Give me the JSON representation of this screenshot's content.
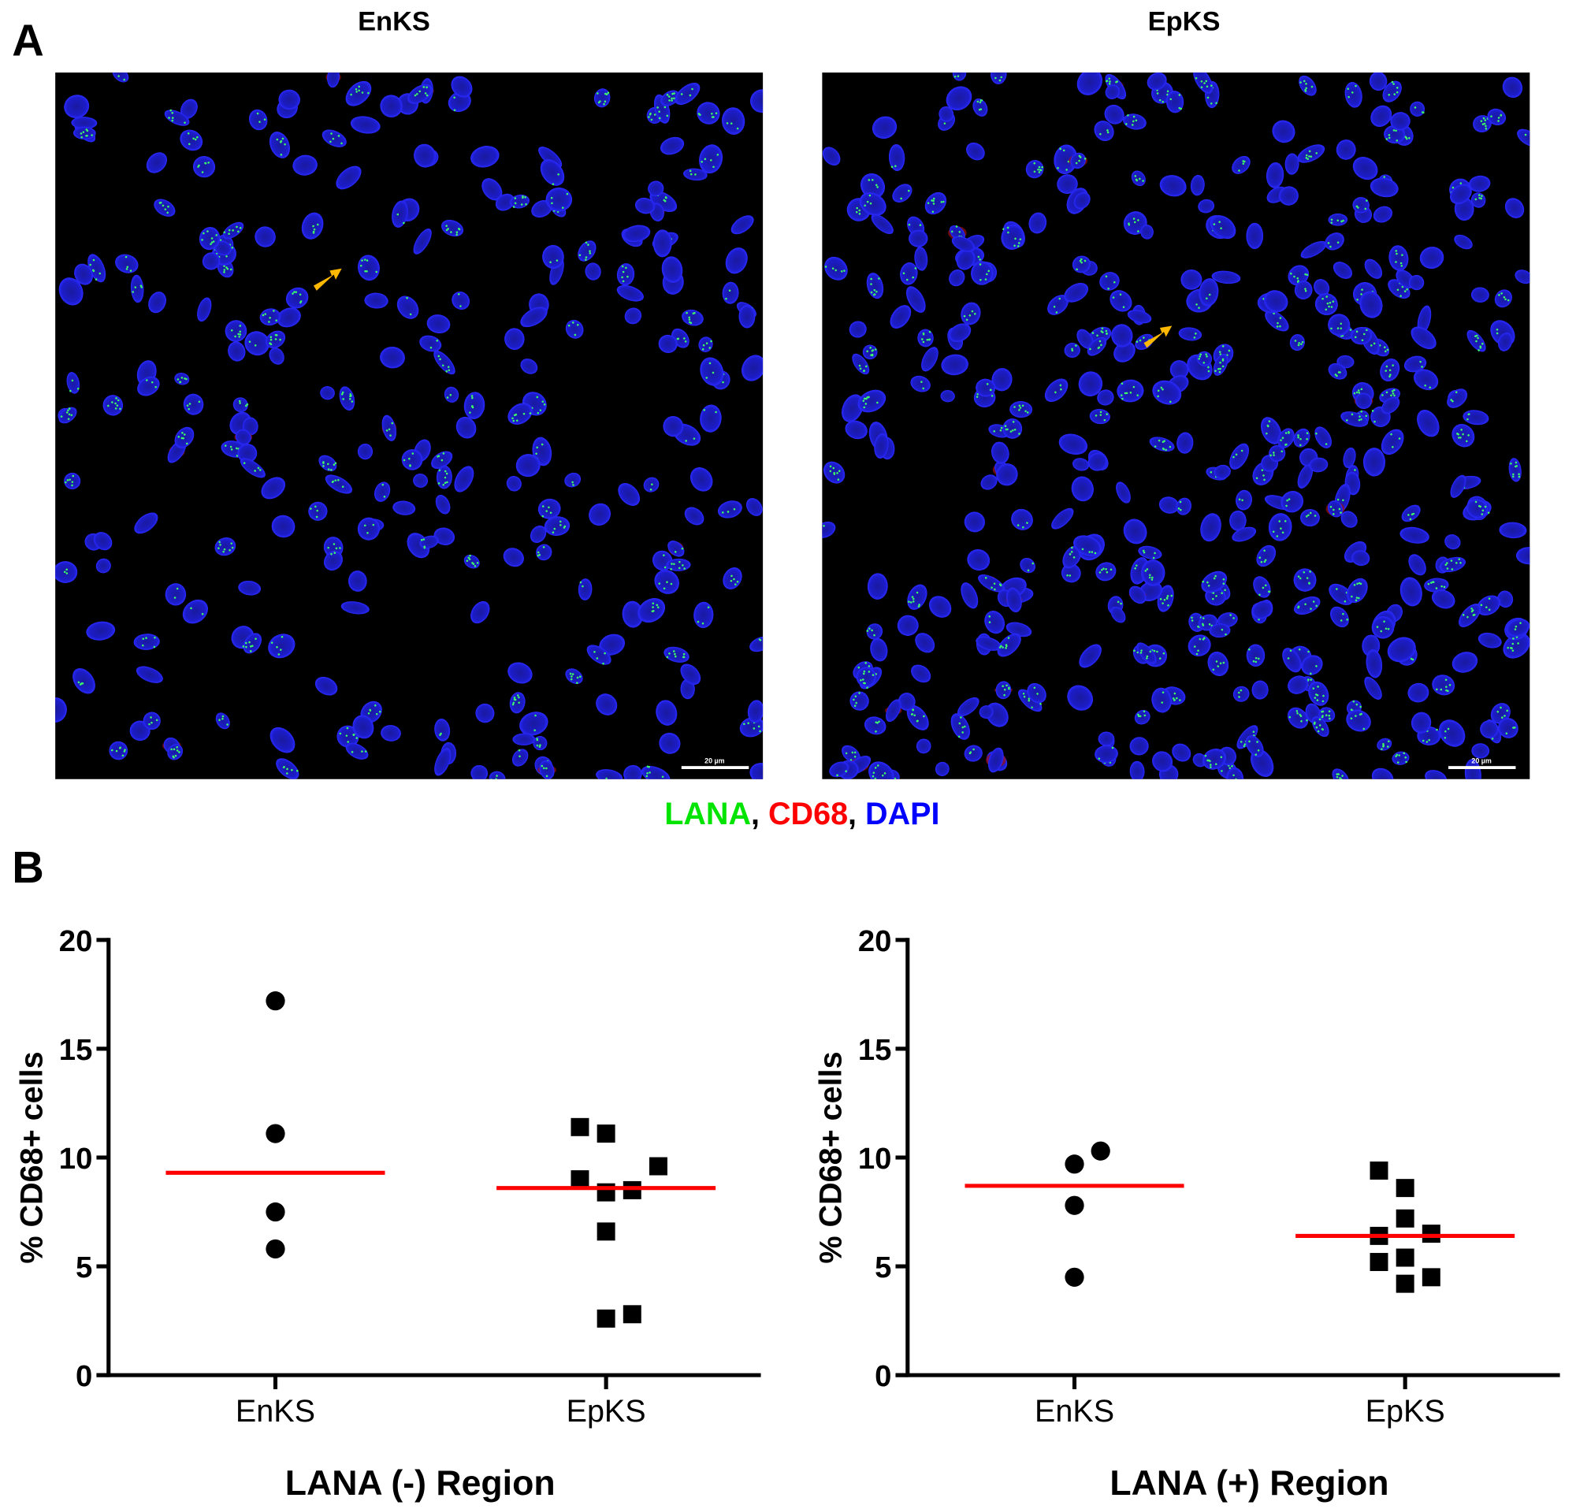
{
  "panel_labels": {
    "a": "A",
    "b": "B"
  },
  "images": [
    {
      "title": "EnKS",
      "scale_bar": "20 µm"
    },
    {
      "title": "EpKS",
      "scale_bar": "20 µm"
    }
  ],
  "legend": {
    "items": [
      {
        "label": "LANA",
        "color": "#00e400"
      },
      {
        "label": "CD68",
        "color": "#ff0000"
      },
      {
        "label": "DAPI",
        "color": "#0000ff"
      }
    ],
    "separator": ", "
  },
  "arrow_color": "#ffb800",
  "chart_data": [
    {
      "type": "scatter",
      "title": "",
      "xlabel": "LANA (-) Region",
      "ylabel": "% CD68+ cells",
      "ylim": [
        0,
        20
      ],
      "yticks": [
        "0",
        "5",
        "10",
        "15",
        "20"
      ],
      "categories": [
        "EnKS",
        "EpKS"
      ],
      "markers": [
        "circle",
        "square"
      ],
      "series": [
        {
          "category": "EnKS",
          "values": [
            17.2,
            11.1,
            7.5,
            5.8
          ],
          "median": 9.3
        },
        {
          "category": "EpKS",
          "values": [
            11.4,
            11.1,
            9.6,
            9.0,
            8.4,
            8.5,
            6.6,
            2.6,
            2.8
          ],
          "median": 8.6
        }
      ],
      "median_line_color": "#ff0000",
      "grid": false
    },
    {
      "type": "scatter",
      "title": "",
      "xlabel": "LANA (+) Region",
      "ylabel": "% CD68+ cells",
      "ylim": [
        0,
        20
      ],
      "yticks": [
        "0",
        "5",
        "10",
        "15",
        "20"
      ],
      "categories": [
        "EnKS",
        "EpKS"
      ],
      "markers": [
        "circle",
        "square"
      ],
      "series": [
        {
          "category": "EnKS",
          "values": [
            10.3,
            9.7,
            7.8,
            4.5
          ],
          "median": 8.7
        },
        {
          "category": "EpKS",
          "values": [
            9.4,
            8.6,
            7.2,
            6.4,
            6.5,
            5.2,
            5.4,
            4.2,
            4.5
          ],
          "median": 6.4
        }
      ],
      "median_line_color": "#ff0000",
      "grid": false
    }
  ]
}
